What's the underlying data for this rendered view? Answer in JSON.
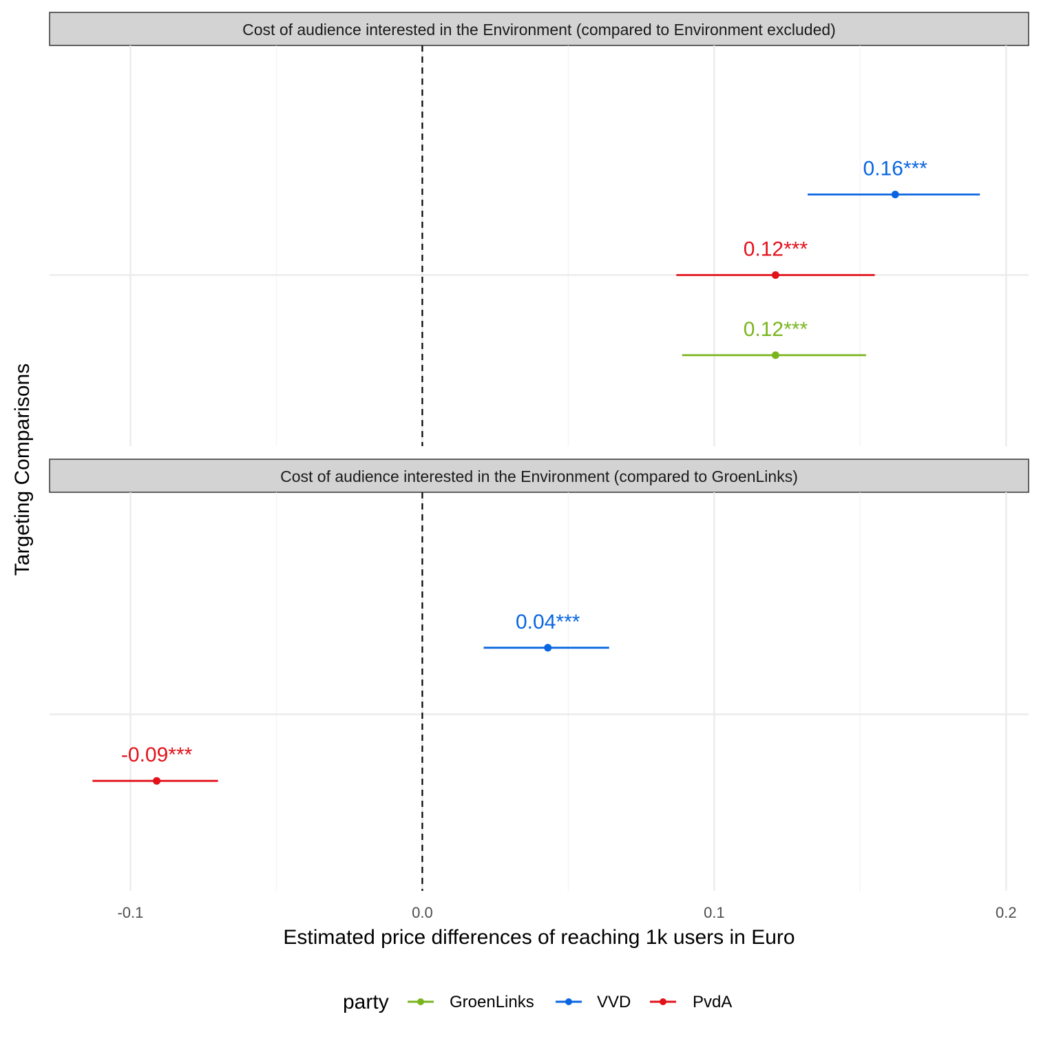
{
  "chart_data": {
    "type": "dot-and-whisker",
    "xlabel": "Estimated price differences of reaching 1k users in Euro",
    "ylabel": "Targeting Comparisons",
    "xlim": [
      -0.1277,
      0.2077
    ],
    "x_ticks": [
      -0.1,
      0.0,
      0.1,
      0.2
    ],
    "x_tick_labels": [
      "-0.1",
      "0.0",
      "0.1",
      "0.2"
    ],
    "reference_line": {
      "x": 0,
      "style": "dashed"
    },
    "grid": true,
    "legend": {
      "title": "party",
      "position": "bottom",
      "entries": [
        {
          "name": "GroenLinks",
          "color": "#7AB51D"
        },
        {
          "name": "VVD",
          "color": "#0A66E0"
        },
        {
          "name": "PvdA",
          "color": "#E2121B"
        }
      ]
    },
    "panels": [
      {
        "title": "Cost of audience interested in the Environment (compared to Environment excluded)",
        "estimates": [
          {
            "party": "VVD",
            "estimate": 0.162,
            "ci_low": 0.132,
            "ci_high": 0.191,
            "label": "0.16***"
          },
          {
            "party": "PvdA",
            "estimate": 0.121,
            "ci_low": 0.087,
            "ci_high": 0.155,
            "label": "0.12***"
          },
          {
            "party": "GroenLinks",
            "estimate": 0.121,
            "ci_low": 0.089,
            "ci_high": 0.152,
            "label": "0.12***"
          }
        ]
      },
      {
        "title": "Cost of audience interested in the Environment (compared to GroenLinks)",
        "estimates": [
          {
            "party": "VVD",
            "estimate": 0.043,
            "ci_low": 0.021,
            "ci_high": 0.064,
            "label": "0.04***"
          },
          {
            "party": "PvdA",
            "estimate": -0.091,
            "ci_low": -0.113,
            "ci_high": -0.07,
            "label": "-0.09***"
          }
        ]
      }
    ]
  }
}
